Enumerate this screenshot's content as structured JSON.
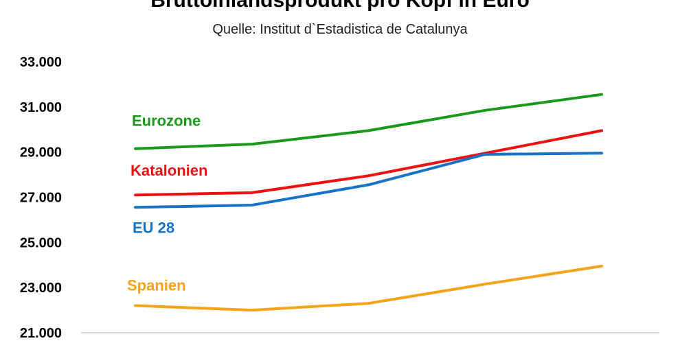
{
  "chart_data": {
    "type": "line",
    "title": "Bruttoinlandsprodukt  pro Kopf in Euro",
    "subtitle": "Quelle: Institut d`Estadistica de Catalunya",
    "xlabel": "",
    "ylabel": "",
    "ylim": [
      21000,
      33000
    ],
    "yticks": [
      21000,
      23000,
      25000,
      27000,
      29000,
      31000,
      33000
    ],
    "ytick_labels": [
      "21.000",
      "23.000",
      "25.000",
      "27.000",
      "29.000",
      "31.000",
      "33.000"
    ],
    "x_points": 5,
    "grid": false,
    "series": [
      {
        "name": "Eurozone",
        "color": "#1a9a1a",
        "values": [
          29150,
          29350,
          29950,
          30850,
          31550
        ]
      },
      {
        "name": "Katalonien",
        "color": "#ee1111",
        "values": [
          27100,
          27200,
          27950,
          28950,
          29950
        ]
      },
      {
        "name": "EU 28",
        "color": "#1874c8",
        "values": [
          26550,
          26650,
          27550,
          28900,
          28950
        ]
      },
      {
        "name": "Spanien",
        "color": "#f5a31a",
        "values": [
          22200,
          22000,
          22300,
          23150,
          23950
        ]
      }
    ]
  }
}
